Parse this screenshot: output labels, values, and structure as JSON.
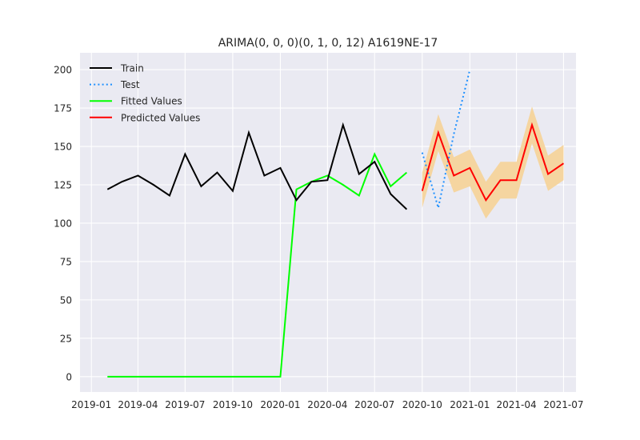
{
  "chart_data": {
    "type": "line",
    "title": "ARIMA(0, 0, 0)(0, 1, 0, 12) A1619NE-17",
    "xlabel": "",
    "ylabel": "",
    "x_axis": "date",
    "xlim": [
      "2018-12-10",
      "2021-07-25"
    ],
    "ylim": [
      -10,
      211
    ],
    "grid": true,
    "legend_position": "top-left",
    "x_ticks": [
      "2019-01",
      "2019-04",
      "2019-07",
      "2019-10",
      "2020-01",
      "2020-04",
      "2020-07",
      "2020-10",
      "2021-01",
      "2021-04",
      "2021-07"
    ],
    "y_ticks": [
      "0",
      "25",
      "50",
      "75",
      "100",
      "125",
      "150",
      "175",
      "200"
    ],
    "legend": [
      "Train",
      "Test",
      "Fitted Values",
      "Predicted Values"
    ],
    "colors": {
      "background": "#eaeaf2",
      "grid": "#ffffff",
      "train": "#000000",
      "test": "#1e90ff",
      "fitted": "#00ff00",
      "predicted": "#ff0000",
      "confidence": "#f5d5a0"
    },
    "series": [
      {
        "name": "Train",
        "style": "solid",
        "x": [
          "2019-02",
          "2019-03",
          "2019-04",
          "2019-05",
          "2019-06",
          "2019-07",
          "2019-08",
          "2019-09",
          "2019-10",
          "2019-11",
          "2019-12",
          "2020-01",
          "2020-02",
          "2020-03",
          "2020-04",
          "2020-05",
          "2020-06",
          "2020-07",
          "2020-08",
          "2020-09"
        ],
        "y": [
          122,
          127,
          131,
          125,
          118,
          145,
          124,
          133,
          121,
          159,
          131,
          136,
          115,
          127,
          128,
          164,
          132,
          140,
          119,
          109
        ]
      },
      {
        "name": "Test",
        "style": "dotted",
        "x": [
          "2020-10",
          "2020-11",
          "2020-12",
          "2021-01"
        ],
        "y": [
          146,
          110,
          158,
          200
        ]
      },
      {
        "name": "Fitted Values",
        "style": "solid",
        "x": [
          "2019-02",
          "2019-03",
          "2019-04",
          "2019-05",
          "2019-06",
          "2019-07",
          "2019-08",
          "2019-09",
          "2019-10",
          "2019-11",
          "2019-12",
          "2020-01",
          "2020-02",
          "2020-03",
          "2020-04",
          "2020-05",
          "2020-06",
          "2020-07",
          "2020-08",
          "2020-09"
        ],
        "y": [
          0,
          0,
          0,
          0,
          0,
          0,
          0,
          0,
          0,
          0,
          0,
          0,
          122,
          127,
          131,
          125,
          118,
          145,
          124,
          133
        ]
      },
      {
        "name": "Predicted Values",
        "style": "solid",
        "x": [
          "2020-10",
          "2020-11",
          "2020-12",
          "2021-01",
          "2021-02",
          "2021-03",
          "2021-04",
          "2021-05",
          "2021-06",
          "2021-07"
        ],
        "y": [
          121,
          159,
          131,
          136,
          115,
          128,
          128,
          164,
          132,
          139
        ],
        "lower": [
          110,
          147,
          120,
          124,
          103,
          116,
          116,
          152,
          121,
          128
        ],
        "upper": [
          133,
          171,
          143,
          148,
          127,
          140,
          140,
          176,
          144,
          151
        ]
      }
    ]
  }
}
